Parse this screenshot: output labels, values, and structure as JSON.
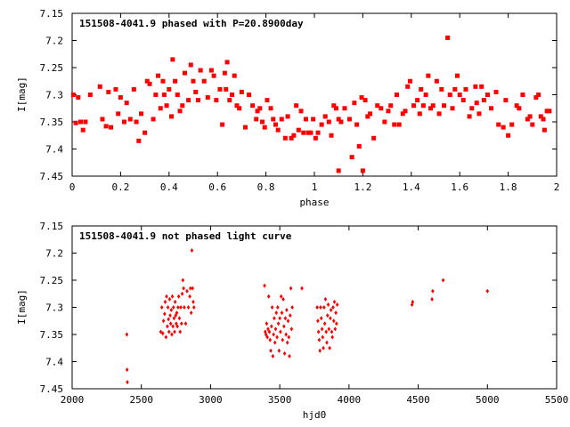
{
  "chart_data": [
    {
      "type": "scatter",
      "title": "151508-4041.9 phased with P=20.8900day",
      "xlabel": "phase",
      "ylabel": "I[mag]",
      "xlim": [
        0,
        2
      ],
      "ylim": [
        7.15,
        7.45
      ],
      "y_inverted": true,
      "xticks": [
        "0",
        "0.2",
        "0.4",
        "0.6",
        "0.8",
        "1",
        "1.2",
        "1.4",
        "1.6",
        "1.8",
        "2"
      ],
      "yticks": [
        "7.15",
        "7.2",
        "7.25",
        "7.3",
        "7.35",
        "7.4",
        "7.45"
      ],
      "marker_color": "#ff0000",
      "points": [
        [
          0.005,
          7.3
        ],
        [
          0.015,
          7.352
        ],
        [
          0.025,
          7.305
        ],
        [
          0.035,
          7.35
        ],
        [
          0.045,
          7.365
        ],
        [
          0.055,
          7.35
        ],
        [
          0.075,
          7.3
        ],
        [
          0.115,
          7.285
        ],
        [
          0.125,
          7.345
        ],
        [
          0.14,
          7.358
        ],
        [
          0.15,
          7.295
        ],
        [
          0.16,
          7.36
        ],
        [
          0.18,
          7.29
        ],
        [
          0.19,
          7.335
        ],
        [
          0.2,
          7.305
        ],
        [
          0.215,
          7.35
        ],
        [
          0.225,
          7.315
        ],
        [
          0.24,
          7.345
        ],
        [
          0.255,
          7.29
        ],
        [
          0.265,
          7.35
        ],
        [
          0.275,
          7.385
        ],
        [
          0.285,
          7.335
        ],
        [
          0.3,
          7.37
        ],
        [
          0.31,
          7.275
        ],
        [
          0.32,
          7.28
        ],
        [
          0.335,
          7.345
        ],
        [
          0.345,
          7.3
        ],
        [
          0.355,
          7.265
        ],
        [
          0.365,
          7.325
        ],
        [
          0.375,
          7.275
        ],
        [
          0.38,
          7.3
        ],
        [
          0.39,
          7.32
        ],
        [
          0.4,
          7.29
        ],
        [
          0.41,
          7.34
        ],
        [
          0.415,
          7.235
        ],
        [
          0.425,
          7.275
        ],
        [
          0.435,
          7.3
        ],
        [
          0.445,
          7.33
        ],
        [
          0.455,
          7.32
        ],
        [
          0.465,
          7.26
        ],
        [
          0.48,
          7.31
        ],
        [
          0.49,
          7.245
        ],
        [
          0.5,
          7.275
        ],
        [
          0.51,
          7.295
        ],
        [
          0.52,
          7.31
        ],
        [
          0.53,
          7.255
        ],
        [
          0.545,
          7.275
        ],
        [
          0.56,
          7.305
        ],
        [
          0.575,
          7.255
        ],
        [
          0.585,
          7.265
        ],
        [
          0.595,
          7.31
        ],
        [
          0.61,
          7.29
        ],
        [
          0.62,
          7.355
        ],
        [
          0.63,
          7.26
        ],
        [
          0.635,
          7.29
        ],
        [
          0.64,
          7.24
        ],
        [
          0.65,
          7.31
        ],
        [
          0.66,
          7.3
        ],
        [
          0.67,
          7.265
        ],
        [
          0.68,
          7.32
        ],
        [
          0.69,
          7.325
        ],
        [
          0.7,
          7.295
        ],
        [
          0.715,
          7.36
        ],
        [
          0.73,
          7.3
        ],
        [
          0.745,
          7.32
        ],
        [
          0.76,
          7.345
        ],
        [
          0.765,
          7.33
        ],
        [
          0.775,
          7.325
        ],
        [
          0.785,
          7.35
        ],
        [
          0.795,
          7.36
        ],
        [
          0.805,
          7.31
        ],
        [
          0.82,
          7.325
        ],
        [
          0.83,
          7.345
        ],
        [
          0.84,
          7.355
        ],
        [
          0.85,
          7.365
        ],
        [
          0.865,
          7.345
        ],
        [
          0.88,
          7.38
        ],
        [
          0.89,
          7.34
        ],
        [
          0.905,
          7.38
        ],
        [
          0.915,
          7.375
        ],
        [
          0.925,
          7.32
        ],
        [
          0.935,
          7.365
        ],
        [
          0.945,
          7.33
        ],
        [
          0.955,
          7.37
        ],
        [
          0.965,
          7.345
        ],
        [
          0.975,
          7.37
        ],
        [
          0.985,
          7.37
        ],
        [
          0.995,
          7.345
        ],
        [
          1.005,
          7.38
        ],
        [
          1.015,
          7.37
        ],
        [
          1.03,
          7.355
        ],
        [
          1.045,
          7.34
        ],
        [
          1.06,
          7.35
        ],
        [
          1.07,
          7.375
        ],
        [
          1.08,
          7.32
        ],
        [
          1.09,
          7.325
        ],
        [
          1.1,
          7.345
        ],
        [
          1.11,
          7.35
        ],
        [
          1.1,
          7.44
        ],
        [
          1.125,
          7.325
        ],
        [
          1.145,
          7.345
        ],
        [
          1.155,
          7.415
        ],
        [
          1.165,
          7.315
        ],
        [
          1.175,
          7.355
        ],
        [
          1.185,
          7.395
        ],
        [
          1.195,
          7.305
        ],
        [
          1.2,
          7.44
        ],
        [
          1.21,
          7.31
        ],
        [
          1.22,
          7.34
        ],
        [
          1.23,
          7.335
        ],
        [
          1.245,
          7.38
        ],
        [
          1.26,
          7.32
        ],
        [
          1.275,
          7.325
        ],
        [
          1.29,
          7.35
        ],
        [
          1.305,
          7.33
        ],
        [
          1.315,
          7.32
        ],
        [
          1.33,
          7.355
        ],
        [
          1.34,
          7.3
        ],
        [
          1.35,
          7.355
        ],
        [
          1.365,
          7.335
        ],
        [
          1.375,
          7.33
        ],
        [
          1.385,
          7.285
        ],
        [
          1.395,
          7.275
        ],
        [
          1.41,
          7.32
        ],
        [
          1.425,
          7.31
        ],
        [
          1.435,
          7.335
        ],
        [
          1.44,
          7.29
        ],
        [
          1.45,
          7.32
        ],
        [
          1.46,
          7.3
        ],
        [
          1.47,
          7.265
        ],
        [
          1.48,
          7.325
        ],
        [
          1.49,
          7.32
        ],
        [
          1.505,
          7.275
        ],
        [
          1.515,
          7.335
        ],
        [
          1.525,
          7.29
        ],
        [
          1.535,
          7.32
        ],
        [
          1.55,
          7.195
        ],
        [
          1.56,
          7.3
        ],
        [
          1.57,
          7.325
        ],
        [
          1.58,
          7.29
        ],
        [
          1.59,
          7.265
        ],
        [
          1.6,
          7.3
        ],
        [
          1.615,
          7.31
        ],
        [
          1.625,
          7.29
        ],
        [
          1.64,
          7.34
        ],
        [
          1.65,
          7.325
        ],
        [
          1.665,
          7.285
        ],
        [
          1.67,
          7.315
        ],
        [
          1.68,
          7.335
        ],
        [
          1.69,
          7.285
        ],
        [
          1.7,
          7.31
        ],
        [
          1.715,
          7.3
        ],
        [
          1.73,
          7.325
        ],
        [
          1.75,
          7.295
        ],
        [
          1.76,
          7.355
        ],
        [
          1.78,
          7.36
        ],
        [
          1.79,
          7.31
        ],
        [
          1.8,
          7.375
        ],
        [
          1.815,
          7.355
        ],
        [
          1.835,
          7.32
        ],
        [
          1.845,
          7.325
        ],
        [
          1.86,
          7.3
        ],
        [
          1.88,
          7.345
        ],
        [
          1.89,
          7.34
        ],
        [
          1.9,
          7.355
        ],
        [
          1.915,
          7.305
        ],
        [
          1.925,
          7.3
        ],
        [
          1.935,
          7.34
        ],
        [
          1.945,
          7.345
        ],
        [
          1.95,
          7.365
        ],
        [
          1.96,
          7.33
        ],
        [
          1.97,
          7.33
        ]
      ]
    },
    {
      "type": "scatter",
      "title": "151508-4041.9 not phased light curve",
      "xlabel": "hjd0",
      "ylabel": "I[mag]",
      "xlim": [
        2000,
        5500
      ],
      "ylim": [
        7.15,
        7.45
      ],
      "y_inverted": true,
      "xticks": [
        "2000",
        "2500",
        "3000",
        "3500",
        "4000",
        "4500",
        "5000",
        "5500"
      ],
      "yticks": [
        "7.15",
        "7.2",
        "7.25",
        "7.3",
        "7.35",
        "7.4",
        "7.45"
      ],
      "marker_color": "#ff0000",
      "points": [
        [
          2395,
          7.35
        ],
        [
          2397,
          7.415
        ],
        [
          2399,
          7.438
        ],
        [
          2640,
          7.345
        ],
        [
          2648,
          7.3
        ],
        [
          2655,
          7.348
        ],
        [
          2660,
          7.325
        ],
        [
          2668,
          7.312
        ],
        [
          2672,
          7.29
        ],
        [
          2678,
          7.355
        ],
        [
          2682,
          7.28
        ],
        [
          2688,
          7.335
        ],
        [
          2692,
          7.3
        ],
        [
          2696,
          7.322
        ],
        [
          2700,
          7.345
        ],
        [
          2704,
          7.285
        ],
        [
          2708,
          7.315
        ],
        [
          2712,
          7.33
        ],
        [
          2716,
          7.305
        ],
        [
          2720,
          7.35
        ],
        [
          2724,
          7.28
        ],
        [
          2728,
          7.335
        ],
        [
          2732,
          7.3
        ],
        [
          2736,
          7.32
        ],
        [
          2740,
          7.345
        ],
        [
          2744,
          7.29
        ],
        [
          2748,
          7.315
        ],
        [
          2752,
          7.33
        ],
        [
          2756,
          7.31
        ],
        [
          2760,
          7.335
        ],
        [
          2765,
          7.3
        ],
        [
          2770,
          7.28
        ],
        [
          2775,
          7.32
        ],
        [
          2780,
          7.345
        ],
        [
          2785,
          7.3
        ],
        [
          2790,
          7.33
        ],
        [
          2795,
          7.275
        ],
        [
          2800,
          7.25
        ],
        [
          2805,
          7.265
        ],
        [
          2810,
          7.3
        ],
        [
          2820,
          7.33
        ],
        [
          2830,
          7.27
        ],
        [
          2840,
          7.3
        ],
        [
          2850,
          7.28
        ],
        [
          2855,
          7.265
        ],
        [
          2860,
          7.31
        ],
        [
          2865,
          7.195
        ],
        [
          2870,
          7.265
        ],
        [
          2875,
          7.29
        ],
        [
          2880,
          7.3
        ],
        [
          3390,
          7.26
        ],
        [
          3395,
          7.345
        ],
        [
          3400,
          7.35
        ],
        [
          3405,
          7.33
        ],
        [
          3410,
          7.355
        ],
        [
          3415,
          7.34
        ],
        [
          3420,
          7.28
        ],
        [
          3425,
          7.345
        ],
        [
          3430,
          7.36
        ],
        [
          3435,
          7.38
        ],
        [
          3440,
          7.335
        ],
        [
          3445,
          7.3
        ],
        [
          3450,
          7.39
        ],
        [
          3455,
          7.35
        ],
        [
          3460,
          7.32
        ],
        [
          3465,
          7.365
        ],
        [
          3470,
          7.34
        ],
        [
          3475,
          7.31
        ],
        [
          3480,
          7.355
        ],
        [
          3485,
          7.3
        ],
        [
          3490,
          7.33
        ],
        [
          3495,
          7.38
        ],
        [
          3500,
          7.32
        ],
        [
          3505,
          7.345
        ],
        [
          3510,
          7.28
        ],
        [
          3515,
          7.31
        ],
        [
          3520,
          7.36
        ],
        [
          3525,
          7.285
        ],
        [
          3530,
          7.335
        ],
        [
          3535,
          7.385
        ],
        [
          3540,
          7.32
        ],
        [
          3545,
          7.35
        ],
        [
          3550,
          7.305
        ],
        [
          3555,
          7.365
        ],
        [
          3560,
          7.325
        ],
        [
          3565,
          7.355
        ],
        [
          3570,
          7.39
        ],
        [
          3575,
          7.315
        ],
        [
          3580,
          7.265
        ],
        [
          3585,
          7.34
        ],
        [
          3590,
          7.3
        ],
        [
          3660,
          7.265
        ],
        [
          3770,
          7.3
        ],
        [
          3775,
          7.325
        ],
        [
          3780,
          7.345
        ],
        [
          3785,
          7.36
        ],
        [
          3790,
          7.38
        ],
        [
          3795,
          7.3
        ],
        [
          3800,
          7.32
        ],
        [
          3805,
          7.34
        ],
        [
          3810,
          7.355
        ],
        [
          3815,
          7.375
        ],
        [
          3820,
          7.3
        ],
        [
          3825,
          7.33
        ],
        [
          3830,
          7.285
        ],
        [
          3835,
          7.345
        ],
        [
          3840,
          7.365
        ],
        [
          3845,
          7.315
        ],
        [
          3850,
          7.295
        ],
        [
          3855,
          7.34
        ],
        [
          3860,
          7.375
        ],
        [
          3865,
          7.32
        ],
        [
          3870,
          7.305
        ],
        [
          3875,
          7.345
        ],
        [
          3880,
          7.355
        ],
        [
          3885,
          7.3
        ],
        [
          3890,
          7.325
        ],
        [
          3895,
          7.29
        ],
        [
          3900,
          7.34
        ],
        [
          3905,
          7.31
        ],
        [
          3910,
          7.33
        ],
        [
          3915,
          7.295
        ],
        [
          4455,
          7.295
        ],
        [
          4460,
          7.29
        ],
        [
          4600,
          7.285
        ],
        [
          4605,
          7.27
        ],
        [
          4680,
          7.25
        ],
        [
          5000,
          7.27
        ]
      ]
    }
  ]
}
